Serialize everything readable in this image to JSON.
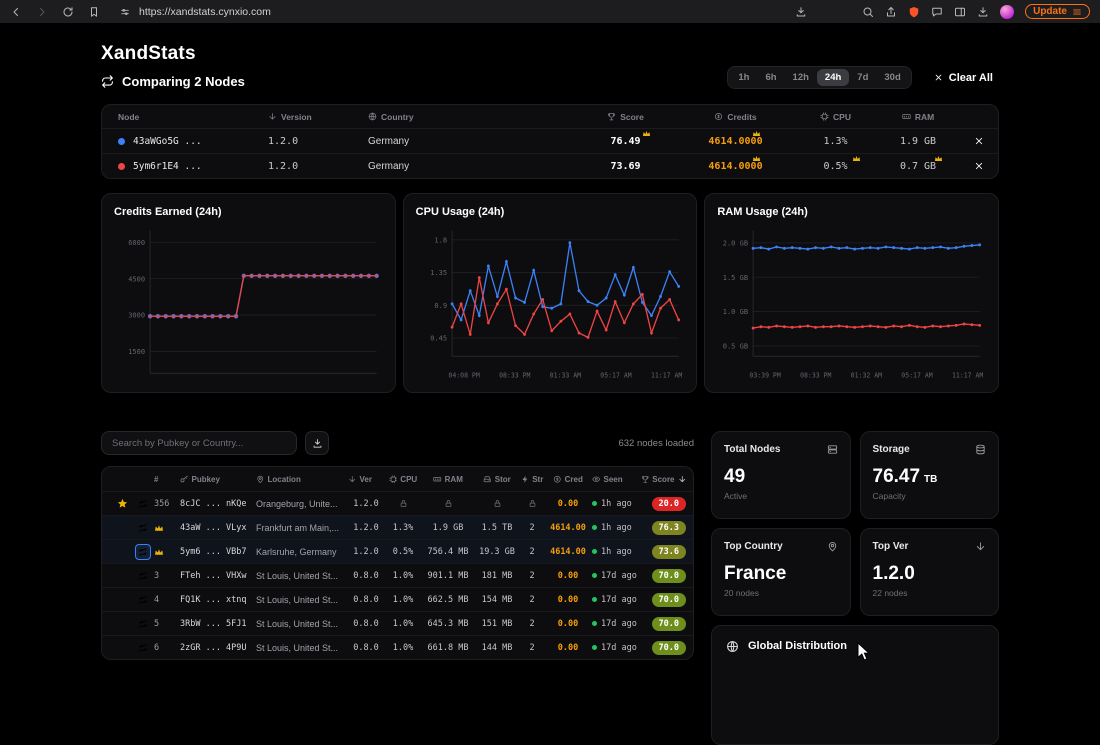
{
  "browser": {
    "url": "https://xandstats.cynxio.com",
    "update_label": "Update"
  },
  "header": {
    "title": "XandStats",
    "subtitle": "Comparing 2 Nodes",
    "time_ranges": [
      "1h",
      "6h",
      "12h",
      "24h",
      "7d",
      "30d"
    ],
    "active_range": "24h",
    "clear_all_label": "Clear All"
  },
  "compare_table": {
    "columns": [
      "Node",
      "Version",
      "Country",
      "Score",
      "Credits",
      "CPU",
      "RAM"
    ],
    "rows": [
      {
        "dot_color": "#3b82f6",
        "node": "43aWGo5G ...",
        "version": "1.2.0",
        "country": "Germany",
        "score": "76.49",
        "credits": "4614.0000",
        "cpu": "1.3%",
        "ram": "1.9 GB",
        "crowns": [
          "score",
          "credits"
        ]
      },
      {
        "dot_color": "#ef4444",
        "node": "5ym6r1E4 ...",
        "version": "1.2.0",
        "country": "Germany",
        "score": "73.69",
        "credits": "4614.0000",
        "cpu": "0.5%",
        "ram": "0.7 GB",
        "crowns": [
          "credits",
          "cpu",
          "ram"
        ]
      }
    ]
  },
  "chart_data": [
    {
      "type": "line",
      "title": "Credits Earned (24h)",
      "ylim": [
        600,
        6400
      ],
      "yticks": [
        1500,
        3000,
        4500,
        6000
      ],
      "ytick_labels": [
        "1500",
        "3000",
        "4500",
        "6000"
      ],
      "xtick_labels": [],
      "series": [
        {
          "name": "43aWGo5G",
          "color": "#3b82f6",
          "values": [
            2950,
            2950,
            2950,
            2950,
            2950,
            2950,
            2950,
            2950,
            2950,
            2950,
            2950,
            2950,
            4614,
            4614,
            4614,
            4614,
            4614,
            4614,
            4614,
            4614,
            4614,
            4614,
            4614,
            4614,
            4614,
            4614,
            4614,
            4614,
            4614,
            4614
          ]
        },
        {
          "name": "5ym6r1E4",
          "color": "#ef4444",
          "values": [
            2950,
            2950,
            2950,
            2950,
            2950,
            2950,
            2950,
            2950,
            2950,
            2950,
            2950,
            2950,
            4614,
            4614,
            4614,
            4614,
            4614,
            4614,
            4614,
            4614,
            4614,
            4614,
            4614,
            4614,
            4614,
            4614,
            4614,
            4614,
            4614,
            4614
          ]
        }
      ]
    },
    {
      "type": "line",
      "title": "CPU Usage (24h)",
      "ylim": [
        0.2,
        1.9
      ],
      "yticks": [
        0.45,
        0.9,
        1.35,
        1.8
      ],
      "ytick_labels": [
        "0.45",
        "0.9",
        "1.35",
        "1.8"
      ],
      "xtick_labels": [
        "04:08 PM",
        "08:33 PM",
        "01:33 AM",
        "05:17 AM",
        "11:17 AM"
      ],
      "series": [
        {
          "name": "43aWGo5G",
          "color": "#3b82f6",
          "values": [
            0.92,
            0.7,
            1.1,
            0.76,
            1.44,
            1.02,
            1.5,
            1.0,
            0.94,
            1.38,
            0.88,
            0.86,
            0.92,
            1.76,
            1.1,
            0.95,
            0.9,
            1.0,
            1.32,
            1.04,
            1.42,
            0.94,
            0.76,
            1.02,
            1.36,
            1.16
          ]
        },
        {
          "name": "5ym6r1E4",
          "color": "#ef4444",
          "values": [
            0.6,
            0.92,
            0.5,
            1.28,
            0.66,
            0.92,
            1.12,
            0.62,
            0.5,
            0.78,
            0.98,
            0.55,
            0.68,
            0.78,
            0.52,
            0.46,
            0.82,
            0.56,
            0.95,
            0.66,
            0.92,
            1.05,
            0.52,
            0.86,
            0.98,
            0.7
          ]
        }
      ]
    },
    {
      "type": "line",
      "title": "RAM Usage (24h)",
      "ylim": [
        0.35,
        2.15
      ],
      "yticks": [
        0.5,
        1.0,
        1.5,
        2.0
      ],
      "ytick_labels": [
        "0.5 GB",
        "1.0 GB",
        "1.5 GB",
        "2.0 GB"
      ],
      "xtick_labels": [
        "03:39 PM",
        "08:33 PM",
        "01:32 AM",
        "05:17 AM",
        "11:17 AM"
      ],
      "series": [
        {
          "name": "43aWGo5G",
          "color": "#3b82f6",
          "values": [
            1.92,
            1.93,
            1.91,
            1.94,
            1.92,
            1.93,
            1.92,
            1.91,
            1.93,
            1.92,
            1.94,
            1.92,
            1.93,
            1.91,
            1.92,
            1.93,
            1.92,
            1.94,
            1.93,
            1.92,
            1.91,
            1.93,
            1.92,
            1.93,
            1.94,
            1.92,
            1.93,
            1.95,
            1.96,
            1.97
          ]
        },
        {
          "name": "5ym6r1E4",
          "color": "#ef4444",
          "values": [
            0.76,
            0.78,
            0.77,
            0.79,
            0.78,
            0.77,
            0.78,
            0.79,
            0.77,
            0.78,
            0.78,
            0.79,
            0.78,
            0.77,
            0.78,
            0.79,
            0.78,
            0.77,
            0.79,
            0.78,
            0.8,
            0.78,
            0.77,
            0.79,
            0.78,
            0.79,
            0.8,
            0.82,
            0.81,
            0.8
          ]
        }
      ]
    }
  ],
  "table_section": {
    "search_placeholder": "Search by Pubkey or Country...",
    "loaded_text": "632 nodes loaded",
    "columns": [
      "#",
      "Pubkey",
      "Location",
      "Ver",
      "CPU",
      "RAM",
      "Stor",
      "Str",
      "Cred",
      "Seen",
      "Score"
    ],
    "rows": [
      {
        "starred": true,
        "compare_active": false,
        "compare_boxed": false,
        "crown": false,
        "rank": "356",
        "pubkey": "8cJC ... nKQe",
        "location": "Orangeburg, Unite...",
        "ver": "1.2.0",
        "locked": true,
        "cpu": "",
        "ram": "",
        "stor": "",
        "str": "",
        "cred": "0.00",
        "seen": "1h ago",
        "score": "20.0",
        "score_color": "#dc2626"
      },
      {
        "starred": false,
        "compare_active": true,
        "compare_boxed": false,
        "crown": true,
        "rank": "1",
        "pubkey": "43aW ... VLyx",
        "location": "Frankfurt am Main,...",
        "ver": "1.2.0",
        "locked": false,
        "cpu": "1.3%",
        "ram": "1.9 GB",
        "stor": "1.5 TB",
        "str": "2",
        "cred": "4614.00",
        "seen": "1h ago",
        "score": "76.3",
        "score_color": "#7d8420"
      },
      {
        "starred": false,
        "compare_active": true,
        "compare_boxed": true,
        "crown": true,
        "rank": "2",
        "pubkey": "5ym6 ... VBb7",
        "location": "Karlsruhe, Germany",
        "ver": "1.2.0",
        "locked": false,
        "cpu": "0.5%",
        "ram": "756.4 MB",
        "stor": "19.3 GB",
        "str": "2",
        "cred": "4614.00",
        "seen": "1h ago",
        "score": "73.6",
        "score_color": "#7d8420"
      },
      {
        "starred": false,
        "compare_active": false,
        "compare_boxed": false,
        "crown": false,
        "rank": "3",
        "pubkey": "FTeh ... VHXw",
        "location": "St Louis, United St...",
        "ver": "0.8.0",
        "locked": false,
        "cpu": "1.0%",
        "ram": "901.1 MB",
        "stor": "181 MB",
        "str": "2",
        "cred": "0.00",
        "seen": "17d ago",
        "score": "70.0",
        "score_color": "#6f8f1c"
      },
      {
        "starred": false,
        "compare_active": false,
        "compare_boxed": false,
        "crown": false,
        "rank": "4",
        "pubkey": "FQ1K ... xtnq",
        "location": "St Louis, United St...",
        "ver": "0.8.0",
        "locked": false,
        "cpu": "1.0%",
        "ram": "662.5 MB",
        "stor": "154 MB",
        "str": "2",
        "cred": "0.00",
        "seen": "17d ago",
        "score": "70.0",
        "score_color": "#6f8f1c"
      },
      {
        "starred": false,
        "compare_active": false,
        "compare_boxed": false,
        "crown": false,
        "rank": "5",
        "pubkey": "3RbW ... 5FJ1",
        "location": "St Louis, United St...",
        "ver": "0.8.0",
        "locked": false,
        "cpu": "1.0%",
        "ram": "645.3 MB",
        "stor": "151 MB",
        "str": "2",
        "cred": "0.00",
        "seen": "17d ago",
        "score": "70.0",
        "score_color": "#6f8f1c"
      },
      {
        "starred": false,
        "compare_active": false,
        "compare_boxed": false,
        "crown": false,
        "rank": "6",
        "pubkey": "2zGR ... 4P9U",
        "location": "St Louis, United St...",
        "ver": "0.8.0",
        "locked": false,
        "cpu": "1.0%",
        "ram": "661.8 MB",
        "stor": "144 MB",
        "str": "2",
        "cred": "0.00",
        "seen": "17d ago",
        "score": "70.0",
        "score_color": "#6f8f1c"
      }
    ]
  },
  "sidebar_cards": {
    "total_nodes": {
      "label": "Total Nodes",
      "value": "49",
      "sub": "Active"
    },
    "storage": {
      "label": "Storage",
      "value": "76.47",
      "unit": "TB",
      "sub": "Capacity"
    },
    "top_country": {
      "label": "Top Country",
      "value": "France",
      "sub": "20 nodes"
    },
    "top_ver": {
      "label": "Top Ver",
      "value": "1.2.0",
      "sub": "22 nodes"
    },
    "global_distribution": {
      "label": "Global Distribution"
    }
  },
  "colors": {
    "accent_orange": "#f59e0b",
    "series_blue": "#3b82f6",
    "series_red": "#ef4444",
    "online_green": "#22c55e",
    "badge_red": "#dc2626",
    "badge_olive": "#7d8420",
    "badge_green": "#6f8f1c",
    "crown_gold": "#eab308",
    "update_orange": "#f97316"
  }
}
